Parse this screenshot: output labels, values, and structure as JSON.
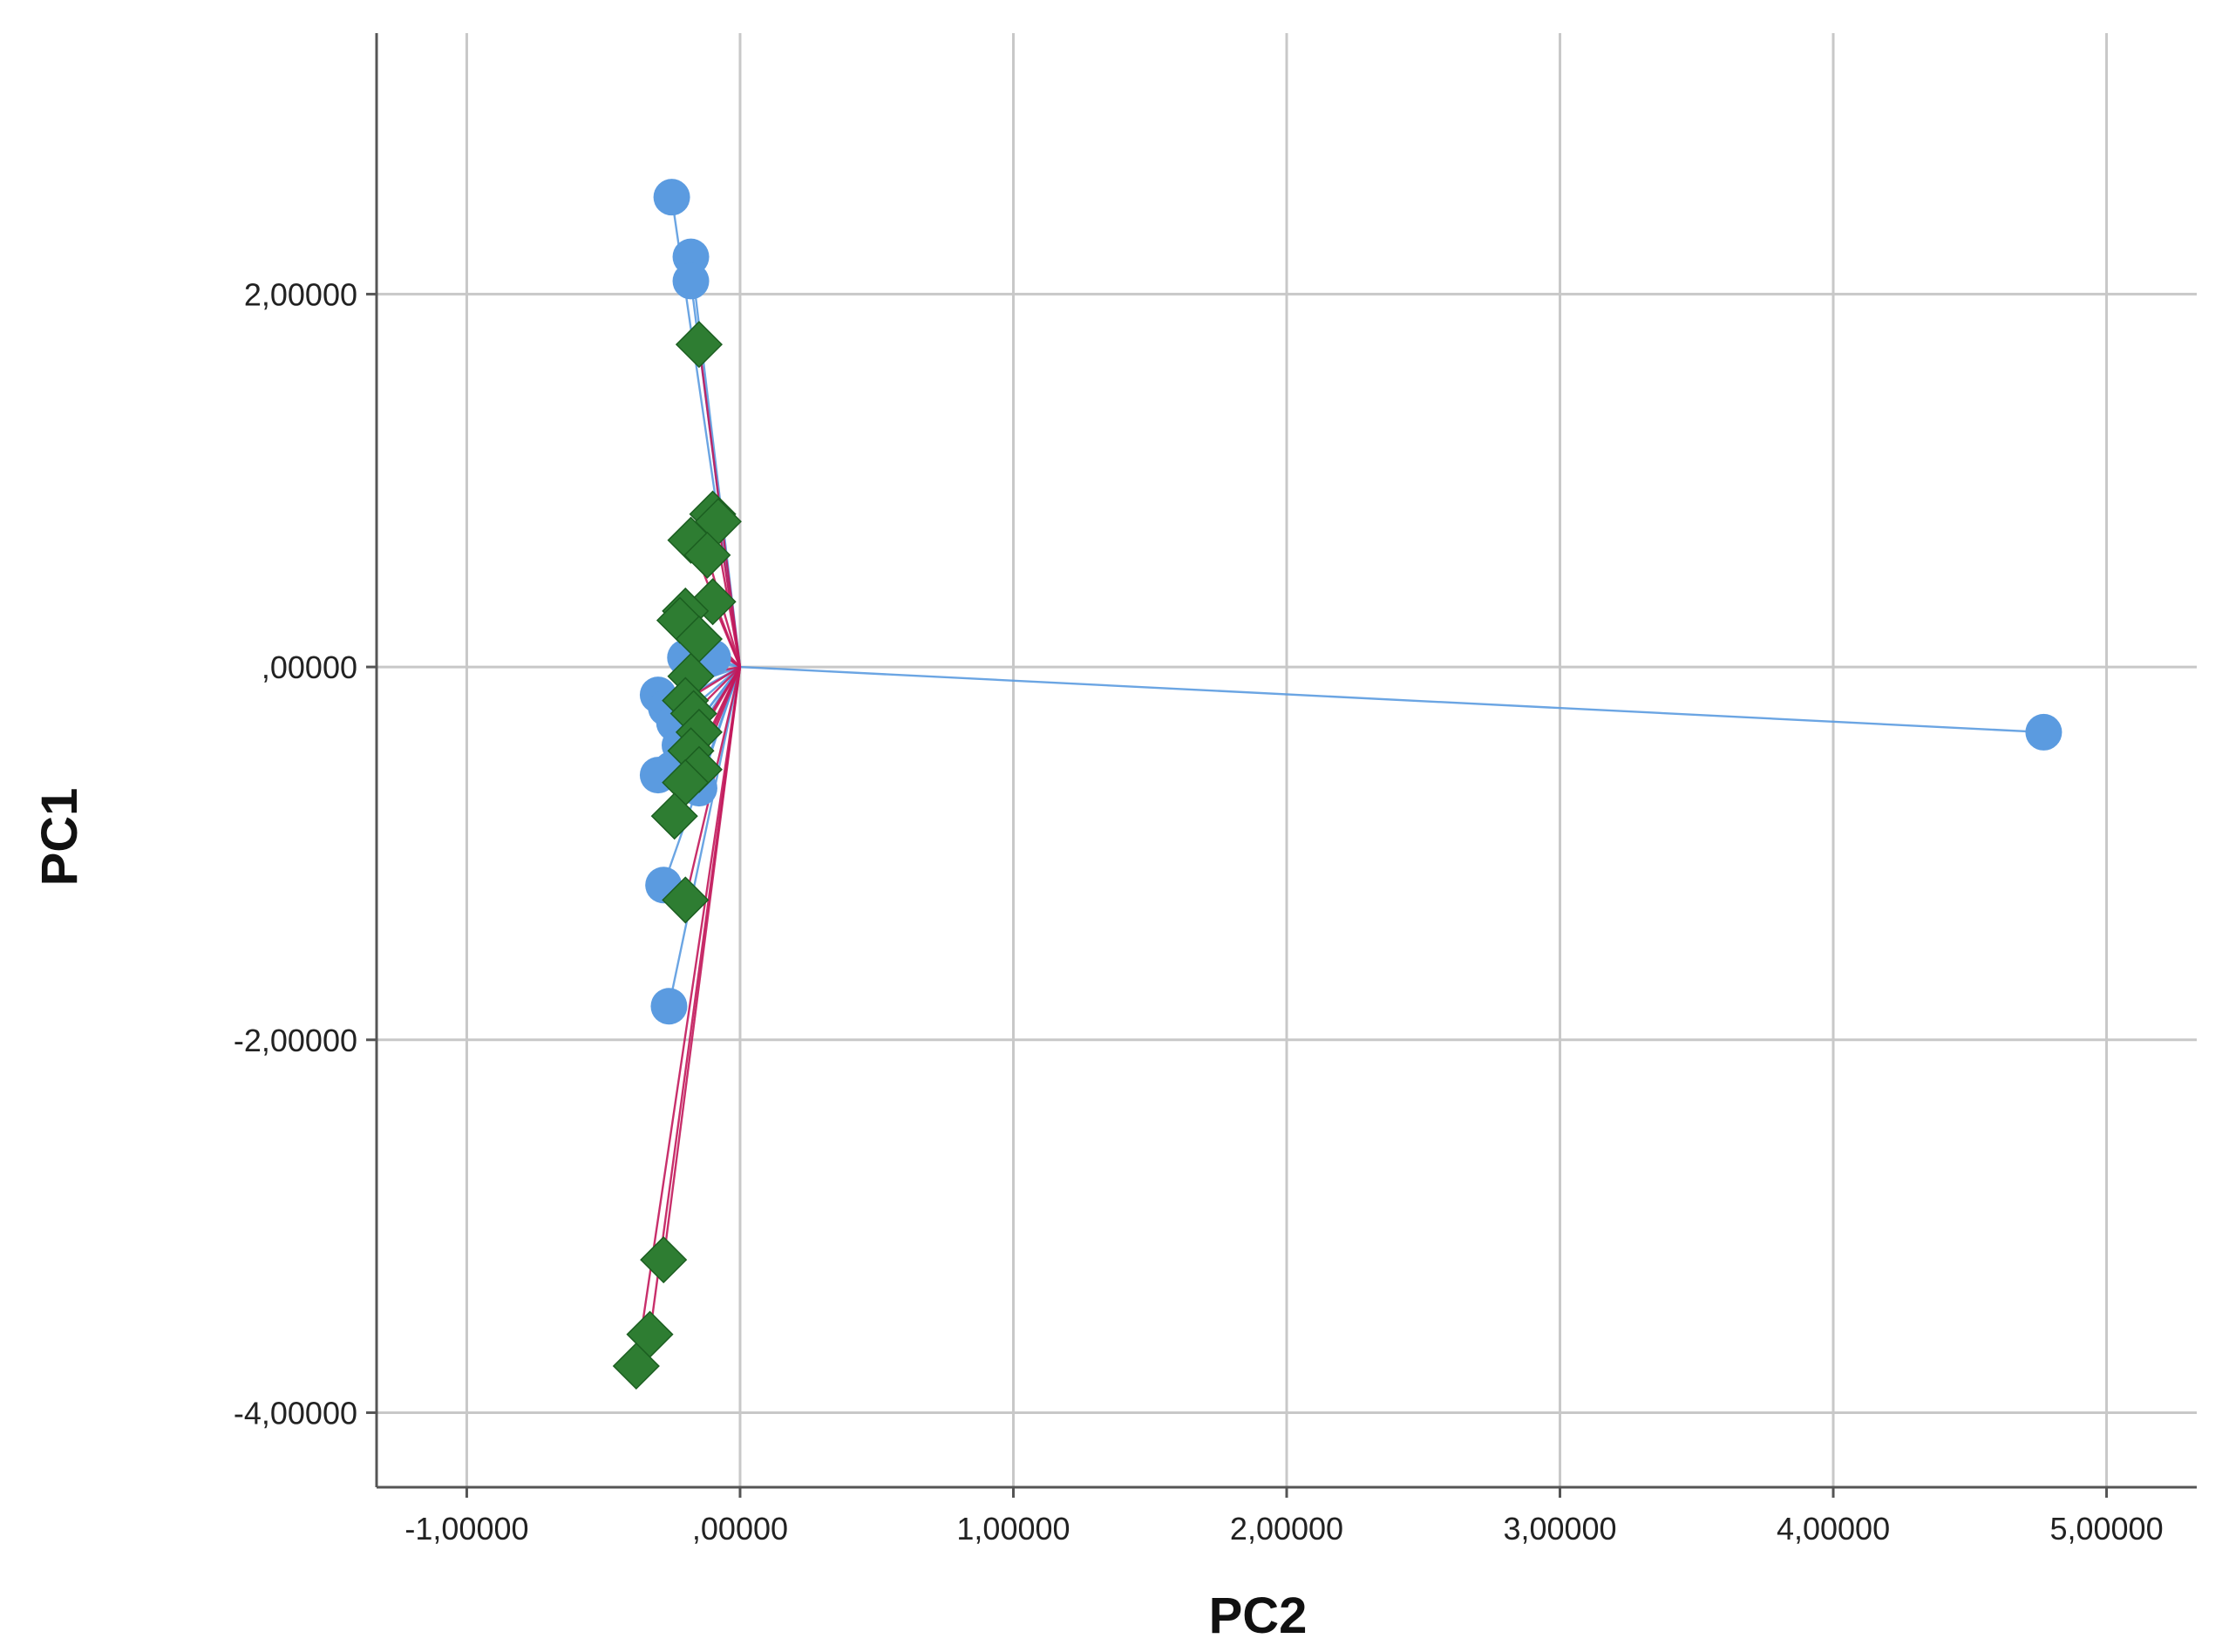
{
  "chart_data": {
    "type": "scatter",
    "title": "",
    "xlabel": "PC2",
    "ylabel": "PC1",
    "xlim": [
      -1.33,
      5.33
    ],
    "ylim": [
      -4.4,
      3.4
    ],
    "grid": true,
    "legend": "none",
    "x_ticks": [
      {
        "value": -1,
        "label": "-1,00000"
      },
      {
        "value": 0,
        "label": ",00000"
      },
      {
        "value": 1,
        "label": "1,00000"
      },
      {
        "value": 2,
        "label": "2,00000"
      },
      {
        "value": 3,
        "label": "3,00000"
      },
      {
        "value": 4,
        "label": "4,00000"
      },
      {
        "value": 5,
        "label": "5,00000"
      }
    ],
    "y_ticks": [
      {
        "value": 2,
        "label": "2,00000"
      },
      {
        "value": 0,
        "label": ",00000"
      },
      {
        "value": -2,
        "label": "-2,00000"
      },
      {
        "value": -4,
        "label": "-4,00000"
      }
    ],
    "centroid": [
      0.0,
      0.0
    ],
    "series": [
      {
        "marker": "circle",
        "color": "#5b9be0",
        "line_color": "#5b9be0",
        "points": [
          [
            -0.25,
            2.52
          ],
          [
            -0.18,
            2.2
          ],
          [
            -0.18,
            2.07
          ],
          [
            -0.2,
            0.05
          ],
          [
            -0.1,
            0.05
          ],
          [
            -0.3,
            -0.15
          ],
          [
            -0.27,
            -0.22
          ],
          [
            -0.24,
            -0.3
          ],
          [
            -0.22,
            -0.42
          ],
          [
            -0.25,
            -0.55
          ],
          [
            -0.3,
            -0.58
          ],
          [
            -0.15,
            -0.65
          ],
          [
            -0.28,
            -1.17
          ],
          [
            -0.26,
            -1.82
          ],
          [
            4.77,
            -0.35
          ]
        ]
      },
      {
        "marker": "diamond",
        "color": "#2e7d32",
        "line_color": "#c2185b",
        "points": [
          [
            -0.15,
            1.73
          ],
          [
            -0.1,
            0.82
          ],
          [
            -0.08,
            0.78
          ],
          [
            -0.18,
            0.68
          ],
          [
            -0.12,
            0.6
          ],
          [
            -0.1,
            0.35
          ],
          [
            -0.2,
            0.3
          ],
          [
            -0.22,
            0.25
          ],
          [
            -0.15,
            0.15
          ],
          [
            -0.18,
            -0.05
          ],
          [
            -0.2,
            -0.18
          ],
          [
            -0.17,
            -0.25
          ],
          [
            -0.15,
            -0.35
          ],
          [
            -0.18,
            -0.45
          ],
          [
            -0.15,
            -0.55
          ],
          [
            -0.2,
            -0.62
          ],
          [
            -0.24,
            -0.8
          ],
          [
            -0.2,
            -1.25
          ],
          [
            -0.28,
            -3.18
          ],
          [
            -0.33,
            -3.58
          ],
          [
            -0.38,
            -3.75
          ]
        ]
      }
    ]
  }
}
